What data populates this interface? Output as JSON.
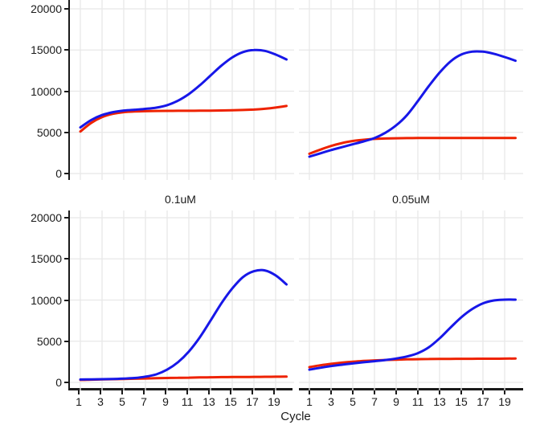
{
  "figure": {
    "xlabel": "Cycle",
    "strip_labels": [
      "0.1uM",
      "0.05uM"
    ],
    "y_tick_labels": [
      "0",
      "5000",
      "10000",
      "15000",
      "20000"
    ],
    "y_tick_values": [
      0,
      5000,
      10000,
      15000,
      20000
    ],
    "x_tick_labels": [
      "1",
      "3",
      "5",
      "7",
      "9",
      "11",
      "13",
      "15",
      "17",
      "19"
    ],
    "x_tick_values": [
      1,
      3,
      5,
      7,
      9,
      11,
      13,
      15,
      17,
      19
    ]
  },
  "colors": {
    "blue": "#1717e8",
    "red": "#ee2200",
    "grid": "#e8e8e8",
    "axis": "#1a1a1a",
    "text": "#1a1a1a"
  },
  "chart_data": [
    {
      "type": "line",
      "title": "",
      "position": "top-left",
      "xlabel": "Cycle",
      "ylim": [
        0,
        20000
      ],
      "x": [
        1,
        2,
        3,
        4,
        5,
        6,
        7,
        8,
        9,
        10,
        11,
        12,
        13,
        14,
        15,
        16,
        17,
        18,
        19,
        20
      ],
      "series": [
        {
          "name": "red",
          "color": "#ee2200",
          "values": [
            5100,
            6150,
            6850,
            7250,
            7450,
            7530,
            7570,
            7600,
            7610,
            7620,
            7620,
            7630,
            7640,
            7660,
            7690,
            7720,
            7770,
            7860,
            8010,
            8200
          ]
        },
        {
          "name": "blue",
          "color": "#1717e8",
          "values": [
            5600,
            6500,
            7100,
            7450,
            7650,
            7750,
            7850,
            8000,
            8300,
            8850,
            9650,
            10700,
            11900,
            13100,
            14100,
            14750,
            15000,
            14900,
            14450,
            13850
          ]
        }
      ]
    },
    {
      "type": "line",
      "title": "",
      "position": "top-right",
      "xlabel": "Cycle",
      "ylim": [
        0,
        20000
      ],
      "x": [
        1,
        2,
        3,
        4,
        5,
        6,
        7,
        8,
        9,
        10,
        11,
        12,
        13,
        14,
        15,
        16,
        17,
        18,
        19,
        20
      ],
      "series": [
        {
          "name": "red",
          "color": "#ee2200",
          "values": [
            2400,
            2900,
            3350,
            3700,
            3950,
            4100,
            4200,
            4250,
            4280,
            4300,
            4310,
            4310,
            4310,
            4310,
            4310,
            4310,
            4310,
            4310,
            4310,
            4310
          ]
        },
        {
          "name": "blue",
          "color": "#1717e8",
          "values": [
            2050,
            2450,
            2850,
            3200,
            3550,
            3900,
            4300,
            4950,
            5850,
            7100,
            8800,
            10600,
            12250,
            13600,
            14450,
            14800,
            14800,
            14550,
            14150,
            13700
          ]
        }
      ]
    },
    {
      "type": "line",
      "title": "0.1uM",
      "position": "bottom-left",
      "xlabel": "Cycle",
      "ylim": [
        0,
        20000
      ],
      "x": [
        1,
        2,
        3,
        4,
        5,
        6,
        7,
        8,
        9,
        10,
        11,
        12,
        13,
        14,
        15,
        16,
        17,
        18,
        19,
        20
      ],
      "series": [
        {
          "name": "red",
          "color": "#ee2200",
          "values": [
            300,
            330,
            360,
            390,
            420,
            450,
            480,
            510,
            540,
            560,
            580,
            600,
            620,
            640,
            650,
            660,
            670,
            680,
            690,
            700
          ]
        },
        {
          "name": "blue",
          "color": "#1717e8",
          "values": [
            350,
            370,
            390,
            420,
            470,
            540,
            700,
            980,
            1550,
            2450,
            3750,
            5450,
            7500,
            9600,
            11400,
            12800,
            13500,
            13600,
            13000,
            11900
          ]
        }
      ]
    },
    {
      "type": "line",
      "title": "0.05uM",
      "position": "bottom-right",
      "xlabel": "Cycle",
      "ylim": [
        0,
        20000
      ],
      "x": [
        1,
        2,
        3,
        4,
        5,
        6,
        7,
        8,
        9,
        10,
        11,
        12,
        13,
        14,
        15,
        16,
        17,
        18,
        19,
        20
      ],
      "series": [
        {
          "name": "red",
          "color": "#ee2200",
          "values": [
            1850,
            2080,
            2250,
            2400,
            2520,
            2600,
            2670,
            2720,
            2760,
            2800,
            2820,
            2840,
            2850,
            2860,
            2870,
            2870,
            2880,
            2880,
            2890,
            2900
          ]
        },
        {
          "name": "blue",
          "color": "#1717e8",
          "values": [
            1550,
            1780,
            1980,
            2150,
            2300,
            2450,
            2580,
            2720,
            2900,
            3150,
            3550,
            4250,
            5350,
            6650,
            7900,
            8900,
            9600,
            9950,
            10050,
            10050
          ]
        }
      ]
    }
  ]
}
